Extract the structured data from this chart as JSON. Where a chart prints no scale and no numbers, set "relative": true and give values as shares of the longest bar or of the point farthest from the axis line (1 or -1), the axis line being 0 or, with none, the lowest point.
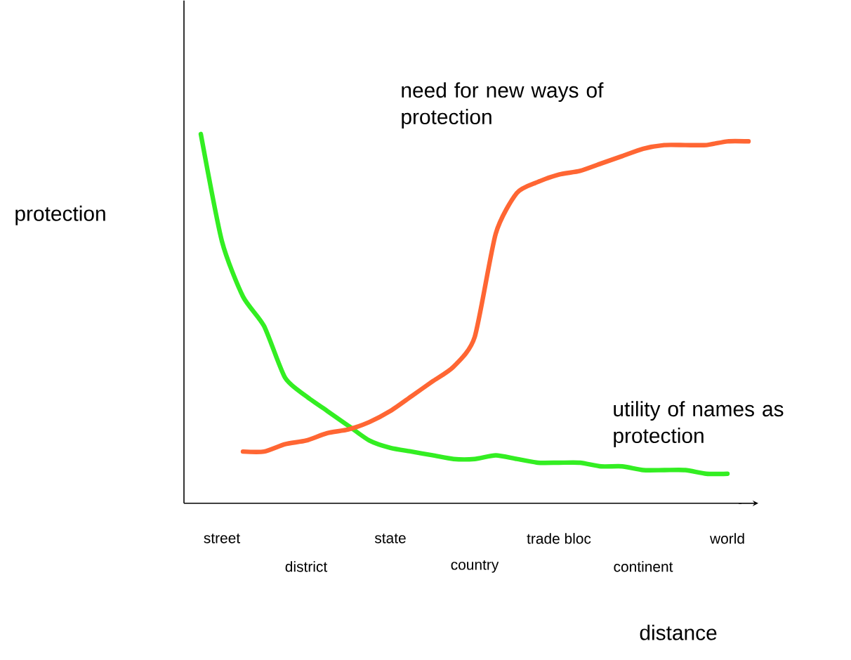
{
  "chart_data": {
    "type": "line",
    "relative": true,
    "xlabel": "distance",
    "ylabel": "protection",
    "legend": false,
    "marker": "none",
    "line_style": "solid",
    "categories": [
      null,
      "street",
      null,
      null,
      null,
      "district",
      null,
      null,
      null,
      "state",
      null,
      null,
      null,
      "country",
      null,
      null,
      null,
      "trade bloc",
      null,
      null,
      null,
      "continent",
      null,
      null,
      null,
      "world",
      null
    ],
    "series": [
      {
        "name": "utility of names as protection",
        "color": "#33ee22",
        "values": [
          1.0,
          0.71,
          0.56,
          0.48,
          0.34,
          0.29,
          0.25,
          0.21,
          0.17,
          0.15,
          0.14,
          0.13,
          0.12,
          0.12,
          0.13,
          0.12,
          0.11,
          0.11,
          0.11,
          0.1,
          0.1,
          0.09,
          0.09,
          0.09,
          0.08,
          0.08,
          null
        ]
      },
      {
        "name": "need for new ways of protection",
        "color": "#ff6633",
        "values": [
          null,
          null,
          0.14,
          0.14,
          0.16,
          0.17,
          0.19,
          0.2,
          0.22,
          0.25,
          0.29,
          0.33,
          0.37,
          0.45,
          0.73,
          0.84,
          0.87,
          0.89,
          0.9,
          0.92,
          0.94,
          0.96,
          0.97,
          0.97,
          0.97,
          0.98,
          0.98
        ]
      }
    ]
  }
}
